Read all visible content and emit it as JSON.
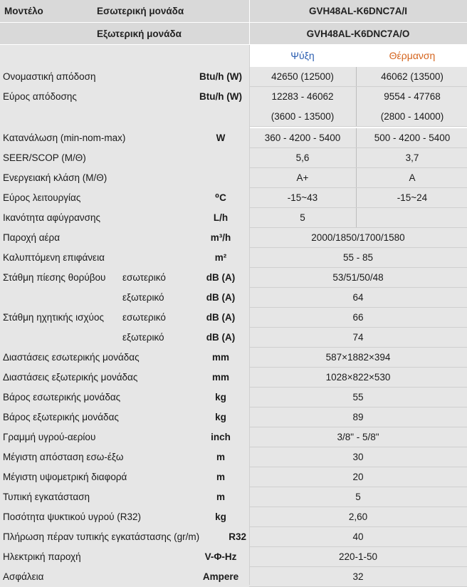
{
  "header": {
    "model_label": "Μοντέλο",
    "indoor_label": "Εσωτερική μονάδα",
    "outdoor_label": "Εξωτερική μονάδα",
    "indoor_model": "GVH48AL-K6DNC7A/I",
    "outdoor_model": "GVH48AL-K6DNC7A/O"
  },
  "modes": {
    "cooling": "Ψύξη",
    "heating": "Θέρμανση"
  },
  "colors": {
    "cooling": "#2a5db0",
    "heating": "#d4631c",
    "header_bg": "#d9d9d9",
    "row_bg": "#e6e6e6"
  },
  "rows": [
    {
      "name": "Ονομαστική απόδοση",
      "unit": "Btu/h (W)",
      "cool": "42650 (12500)",
      "heat": "46062 (13500)"
    },
    {
      "name": "Εύρος απόδοσης",
      "unit": "Btu/h (W)",
      "cool": "12283 - 46062",
      "heat": "9554 - 47768"
    },
    {
      "name": "",
      "unit": "",
      "cool": "(3600 - 13500)",
      "heat": "(2800 - 14000)"
    },
    {
      "name": "Κατανάλωση (min-nom-max)",
      "unit": "W",
      "cool": "360 - 4200 - 5400",
      "heat": "500 - 4200 - 5400"
    },
    {
      "name": "SEER/SCOP (Μ/Θ)",
      "unit": "",
      "cool": "5,6",
      "heat": "3,7"
    },
    {
      "name": "Ενεργειακή κλάση (Μ/Θ)",
      "unit": "",
      "cool": "A+",
      "heat": "A"
    },
    {
      "name": "Εύρος λειτουργίας",
      "unit": "⁰C",
      "cool": "-15~43",
      "heat": "-15~24"
    },
    {
      "name": "Ικανότητα αφύγρανσης",
      "unit": "L/h",
      "cool": "5",
      "heat": ""
    },
    {
      "name": "Παροχή αέρα",
      "unit": "m³/h",
      "value": "2000/1850/1700/1580"
    },
    {
      "name": "Καλυπτόμενη επιφάνεια",
      "unit": "m²",
      "value": "55 - 85"
    },
    {
      "name": "Στάθμη πίεσης θορύβου",
      "sub": "εσωτερικό",
      "unit": "dB (A)",
      "value": "53/51/50/48"
    },
    {
      "name": "",
      "sub": "εξωτερικό",
      "unit": "dB (A)",
      "value": "64"
    },
    {
      "name": "Στάθμη ηχητικής ισχύος",
      "sub": "εσωτερικό",
      "unit": "dB (A)",
      "value": "66"
    },
    {
      "name": "",
      "sub": "εξωτερικό",
      "unit": "dB (A)",
      "value": "74"
    },
    {
      "name": "Διαστάσεις εσωτερικής μονάδας",
      "unit": "mm",
      "value": "587×1882×394"
    },
    {
      "name": "Διαστάσεις εξωτερικής μονάδας",
      "unit": "mm",
      "value": "1028×822×530"
    },
    {
      "name": "Βάρος εσωτερικής μονάδας",
      "unit": "kg",
      "value": "55"
    },
    {
      "name": "Βάρος εξωτερικής μονάδας",
      "unit": "kg",
      "value": "89"
    },
    {
      "name": "Γραμμή υγρού-αερίου",
      "unit": "inch",
      "value": "3/8\" - 5/8\""
    },
    {
      "name": "Μέγιστη απόσταση εσω-έξω",
      "unit": "m",
      "value": "30"
    },
    {
      "name": "Μέγιστη υψομετρική διαφορά",
      "unit": "m",
      "value": "20"
    },
    {
      "name": "Τυπική εγκατάσταση",
      "unit": "m",
      "value": "5"
    },
    {
      "name": "Ποσότητα ψυκτικού υγρού (R32)",
      "unit": "kg",
      "value": "2,60"
    },
    {
      "name": "Πλήρωση πέραν τυπικής εγκατάστασης (gr/m)",
      "unit": "R32",
      "value": "40",
      "unit_align": "right"
    },
    {
      "name": "Ηλεκτρική παροχή",
      "unit": "V-Φ-Hz",
      "value": "220-1-50"
    },
    {
      "name": "Ασφάλεια",
      "unit": "Ampere",
      "value": "32"
    }
  ]
}
